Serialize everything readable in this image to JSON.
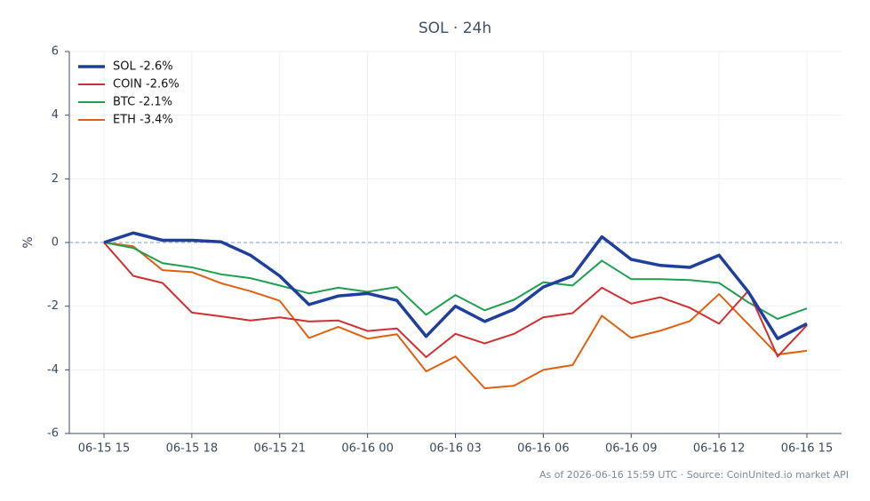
{
  "chart_data": {
    "type": "line",
    "title": "SOL · 24h",
    "y_label": "%",
    "footer": "As of 2026-06-16 15:59 UTC · Source: CoinUnited.io market API",
    "categories": [
      "06-15 15",
      null,
      null,
      "06-15 18",
      null,
      null,
      "06-15 21",
      null,
      null,
      "06-16 00",
      null,
      null,
      "06-16 03",
      null,
      null,
      "06-16 06",
      null,
      null,
      "06-16 09",
      null,
      null,
      "06-16 12",
      null,
      null,
      "06-16 15"
    ],
    "series": [
      {
        "name": "SOL -2.6%",
        "color": "#1f3f9e",
        "width": 3.5,
        "values": [
          0,
          0.3,
          0.07,
          0.07,
          0.02,
          -0.4,
          -1.05,
          -1.95,
          -1.68,
          -1.6,
          -1.82,
          -2.95,
          -2.0,
          -2.48,
          -2.1,
          -1.4,
          -1.05,
          0.18,
          -0.53,
          -0.72,
          -0.78,
          -0.4,
          -1.55,
          -3.02,
          -2.55
        ]
      },
      {
        "name": "COIN -2.6%",
        "color": "#d03030",
        "width": 2,
        "values": [
          0,
          -1.05,
          -1.27,
          -2.2,
          -2.32,
          -2.45,
          -2.35,
          -2.48,
          -2.45,
          -2.78,
          -2.7,
          -3.6,
          -2.87,
          -3.17,
          -2.87,
          -2.35,
          -2.22,
          -1.42,
          -1.92,
          -1.72,
          -2.05,
          -2.55,
          -1.52,
          -3.58,
          -2.6
        ]
      },
      {
        "name": "BTC -2.1%",
        "color": "#1fa050",
        "width": 2,
        "values": [
          0,
          -0.17,
          -0.65,
          -0.78,
          -1.0,
          -1.12,
          -1.35,
          -1.6,
          -1.42,
          -1.55,
          -1.4,
          -2.27,
          -1.65,
          -2.13,
          -1.8,
          -1.25,
          -1.35,
          -0.57,
          -1.15,
          -1.15,
          -1.18,
          -1.27,
          -1.88,
          -2.4,
          -2.07
        ]
      },
      {
        "name": "ETH -3.4%",
        "color": "#e06010",
        "width": 2,
        "values": [
          0,
          -0.12,
          -0.87,
          -0.93,
          -1.28,
          -1.53,
          -1.83,
          -3.0,
          -2.65,
          -3.02,
          -2.88,
          -4.05,
          -3.58,
          -4.58,
          -4.5,
          -4.0,
          -3.85,
          -2.3,
          -3.0,
          -2.77,
          -2.47,
          -1.62,
          -2.57,
          -3.52,
          -3.4
        ]
      }
    ],
    "ylim": [
      -6,
      6
    ],
    "yticks": [
      -6,
      -4,
      -2,
      0,
      2,
      4,
      6
    ],
    "grid": true,
    "reference_line": 0,
    "legend": "top-left"
  }
}
